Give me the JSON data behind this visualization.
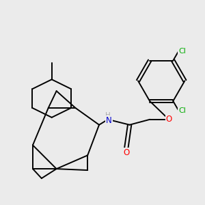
{
  "background_color": "#ebebeb",
  "bond_color": "#000000",
  "atom_colors": {
    "N": "#0000cd",
    "O_carbonyl": "#ff0000",
    "O_ether": "#ff0000",
    "Cl": "#00aa00",
    "H": "#aaaaaa",
    "C": "#000000"
  },
  "line_width": 1.4,
  "figsize": [
    3.0,
    3.0
  ],
  "dpi": 100,
  "xlim": [
    0,
    10
  ],
  "ylim": [
    0,
    10
  ]
}
